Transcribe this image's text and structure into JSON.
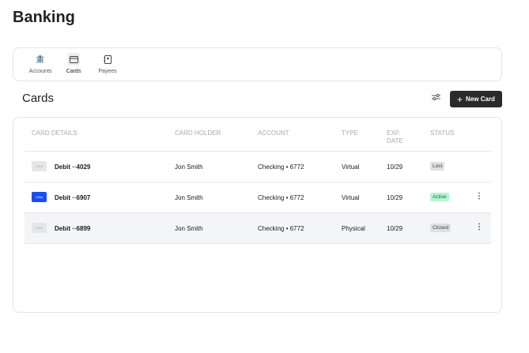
{
  "title": "Banking",
  "nav": [
    {
      "label": "Accounts",
      "icon": "bank-icon"
    },
    {
      "label": "Cards",
      "icon": "credit-card-icon",
      "active": true
    },
    {
      "label": "Payees",
      "icon": "contact-book-icon"
    }
  ],
  "section_title": "Cards",
  "new_card_label": "New Card",
  "columns": [
    "CARD DETAILS",
    "CARD HOLDER",
    "ACCOUNT",
    "TYPE",
    "EXP. DATE",
    "STATUS"
  ],
  "rows": [
    {
      "brand": "VISA",
      "name": "Debit ··4029",
      "holder": "Jon Smith",
      "account": "Checking • 6772",
      "type": "Virtual",
      "exp": "10/29",
      "status": "Lost"
    },
    {
      "brand": "VISA",
      "name": "Debit ··6907",
      "holder": "Jon Smith",
      "account": "Checking • 6772",
      "type": "Virtual",
      "exp": "10/29",
      "status": "Active"
    },
    {
      "brand": "VISA",
      "name": "Debit ··6899",
      "holder": "Jon Smith",
      "account": "Checking • 6772",
      "type": "Physical",
      "exp": "10/29",
      "status": "Closed"
    }
  ],
  "colors": {
    "active_badge": "#b6f5d2",
    "visa_active": "#1a4df5",
    "button": "#2b2b2b"
  }
}
